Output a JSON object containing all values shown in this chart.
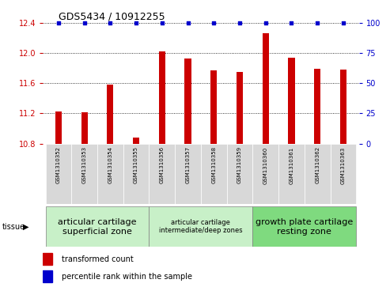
{
  "title": "GDS5434 / 10912255",
  "samples": [
    "GSM1310352",
    "GSM1310353",
    "GSM1310354",
    "GSM1310355",
    "GSM1310356",
    "GSM1310357",
    "GSM1310358",
    "GSM1310359",
    "GSM1310360",
    "GSM1310361",
    "GSM1310362",
    "GSM1310363"
  ],
  "bar_values": [
    11.23,
    11.21,
    11.58,
    10.88,
    12.02,
    11.93,
    11.77,
    11.75,
    12.26,
    11.94,
    11.79,
    11.78
  ],
  "percentile_values": [
    100,
    100,
    100,
    100,
    100,
    100,
    100,
    100,
    100,
    100,
    100,
    100
  ],
  "bar_color": "#cc0000",
  "percentile_color": "#0000cc",
  "ylim_left": [
    10.8,
    12.4
  ],
  "ylim_right": [
    0,
    100
  ],
  "yticks_left": [
    10.8,
    11.2,
    11.6,
    12.0,
    12.4
  ],
  "yticks_right": [
    0,
    25,
    50,
    75,
    100
  ],
  "grid_values": [
    11.2,
    11.6,
    12.0,
    12.4
  ],
  "tissue_groups": [
    {
      "label": "articular cartilage\nsuperficial zone",
      "start": 0,
      "end": 3,
      "color": "#c8f0c8",
      "fontsize": 8
    },
    {
      "label": "articular cartilage\nintermediate/deep zones",
      "start": 4,
      "end": 7,
      "color": "#c8f0c8",
      "fontsize": 6
    },
    {
      "label": "growth plate cartilage\nresting zone",
      "start": 8,
      "end": 11,
      "color": "#7fda7f",
      "fontsize": 8
    }
  ],
  "tissue_label": "tissue",
  "legend_bar_label": "transformed count",
  "legend_pct_label": "percentile rank within the sample",
  "background_color": "#ffffff",
  "plot_bg_color": "#ffffff",
  "sample_cell_color": "#d8d8d8",
  "bar_width": 0.25
}
